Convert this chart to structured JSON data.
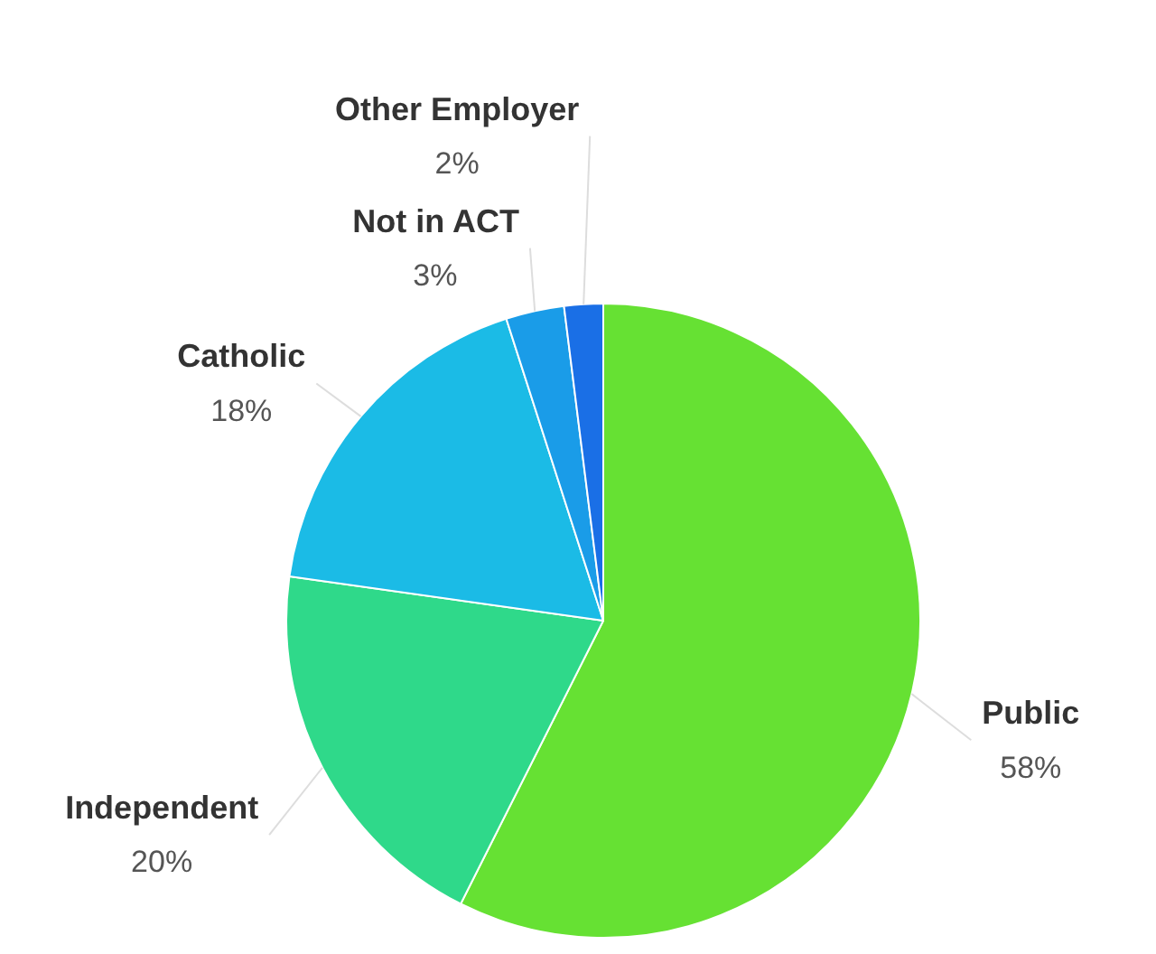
{
  "chart_data": {
    "type": "pie",
    "categories": [
      "Public",
      "Independent",
      "Catholic",
      "Not in ACT",
      "Other Employer"
    ],
    "values": [
      58,
      20,
      18,
      3,
      2
    ],
    "colors": [
      "#66e133",
      "#2fd98a",
      "#1bbbe6",
      "#1a9ce8",
      "#1a6fe6"
    ],
    "value_labels": [
      "58%",
      "20%",
      "18%",
      "3%",
      "2%"
    ],
    "legend": false
  }
}
